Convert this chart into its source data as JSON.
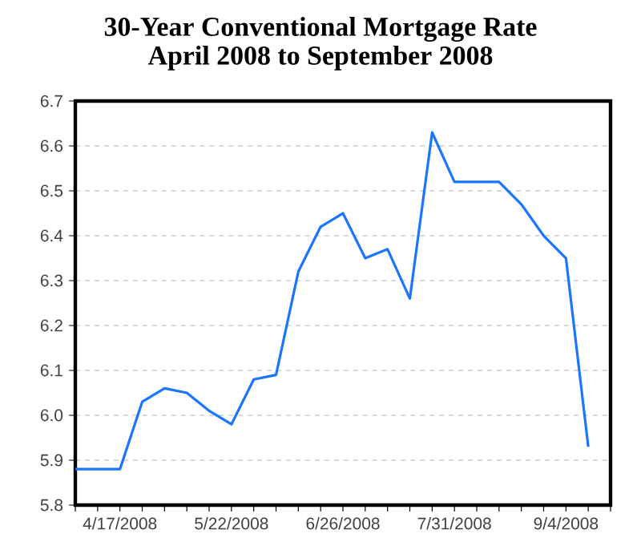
{
  "chart_data": {
    "type": "line",
    "title": "30-Year Conventional Mortgage Rate",
    "subtitle": "April 2008 to September 2008",
    "x": [
      "2008-04-03",
      "2008-04-10",
      "2008-04-17",
      "2008-04-24",
      "2008-05-01",
      "2008-05-08",
      "2008-05-15",
      "2008-05-22",
      "2008-05-29",
      "2008-06-05",
      "2008-06-12",
      "2008-06-19",
      "2008-06-26",
      "2008-07-03",
      "2008-07-10",
      "2008-07-17",
      "2008-07-24",
      "2008-07-31",
      "2008-08-07",
      "2008-08-14",
      "2008-08-21",
      "2008-08-28",
      "2008-09-04",
      "2008-09-11"
    ],
    "series": [
      {
        "color": "#1a75ff",
        "values": [
          5.88,
          5.88,
          5.88,
          6.03,
          6.06,
          6.05,
          6.01,
          5.98,
          6.08,
          6.09,
          6.32,
          6.42,
          6.45,
          6.35,
          6.37,
          6.26,
          6.63,
          6.52,
          6.52,
          6.52,
          6.47,
          6.4,
          6.35,
          5.93
        ]
      }
    ],
    "xlim": [
      "2008-04-03",
      "2008-09-18"
    ],
    "xticks": [
      {
        "value": "2008-04-03",
        "label": null
      },
      {
        "value": "2008-04-10",
        "label": null
      },
      {
        "value": "2008-04-17",
        "label": "4/17/2008"
      },
      {
        "value": "2008-04-24",
        "label": null
      },
      {
        "value": "2008-05-01",
        "label": null
      },
      {
        "value": "2008-05-08",
        "label": null
      },
      {
        "value": "2008-05-15",
        "label": null
      },
      {
        "value": "2008-05-22",
        "label": "5/22/2008"
      },
      {
        "value": "2008-05-29",
        "label": null
      },
      {
        "value": "2008-06-05",
        "label": null
      },
      {
        "value": "2008-06-12",
        "label": null
      },
      {
        "value": "2008-06-19",
        "label": null
      },
      {
        "value": "2008-06-26",
        "label": "6/26/2008"
      },
      {
        "value": "2008-07-03",
        "label": null
      },
      {
        "value": "2008-07-10",
        "label": null
      },
      {
        "value": "2008-07-17",
        "label": null
      },
      {
        "value": "2008-07-24",
        "label": null
      },
      {
        "value": "2008-07-31",
        "label": "7/31/2008"
      },
      {
        "value": "2008-08-07",
        "label": null
      },
      {
        "value": "2008-08-14",
        "label": null
      },
      {
        "value": "2008-08-21",
        "label": null
      },
      {
        "value": "2008-08-28",
        "label": null
      },
      {
        "value": "2008-09-04",
        "label": "9/4/2008"
      },
      {
        "value": "2008-09-11",
        "label": null
      },
      {
        "value": "2008-09-18",
        "label": null
      }
    ],
    "ylim": [
      5.8,
      6.7
    ],
    "yticks": [
      {
        "value": 5.8,
        "label": "5.8"
      },
      {
        "value": 5.9,
        "label": "5.9"
      },
      {
        "value": 6.0,
        "label": "6.0"
      },
      {
        "value": 6.1,
        "label": "6.1"
      },
      {
        "value": 6.2,
        "label": "6.2"
      },
      {
        "value": 6.3,
        "label": "6.3"
      },
      {
        "value": 6.4,
        "label": "6.4"
      },
      {
        "value": 6.5,
        "label": "6.5"
      },
      {
        "value": 6.6,
        "label": "6.6"
      },
      {
        "value": 6.7,
        "label": "6.7"
      }
    ],
    "grid": "y",
    "marker": "none",
    "line_style": "solid"
  }
}
